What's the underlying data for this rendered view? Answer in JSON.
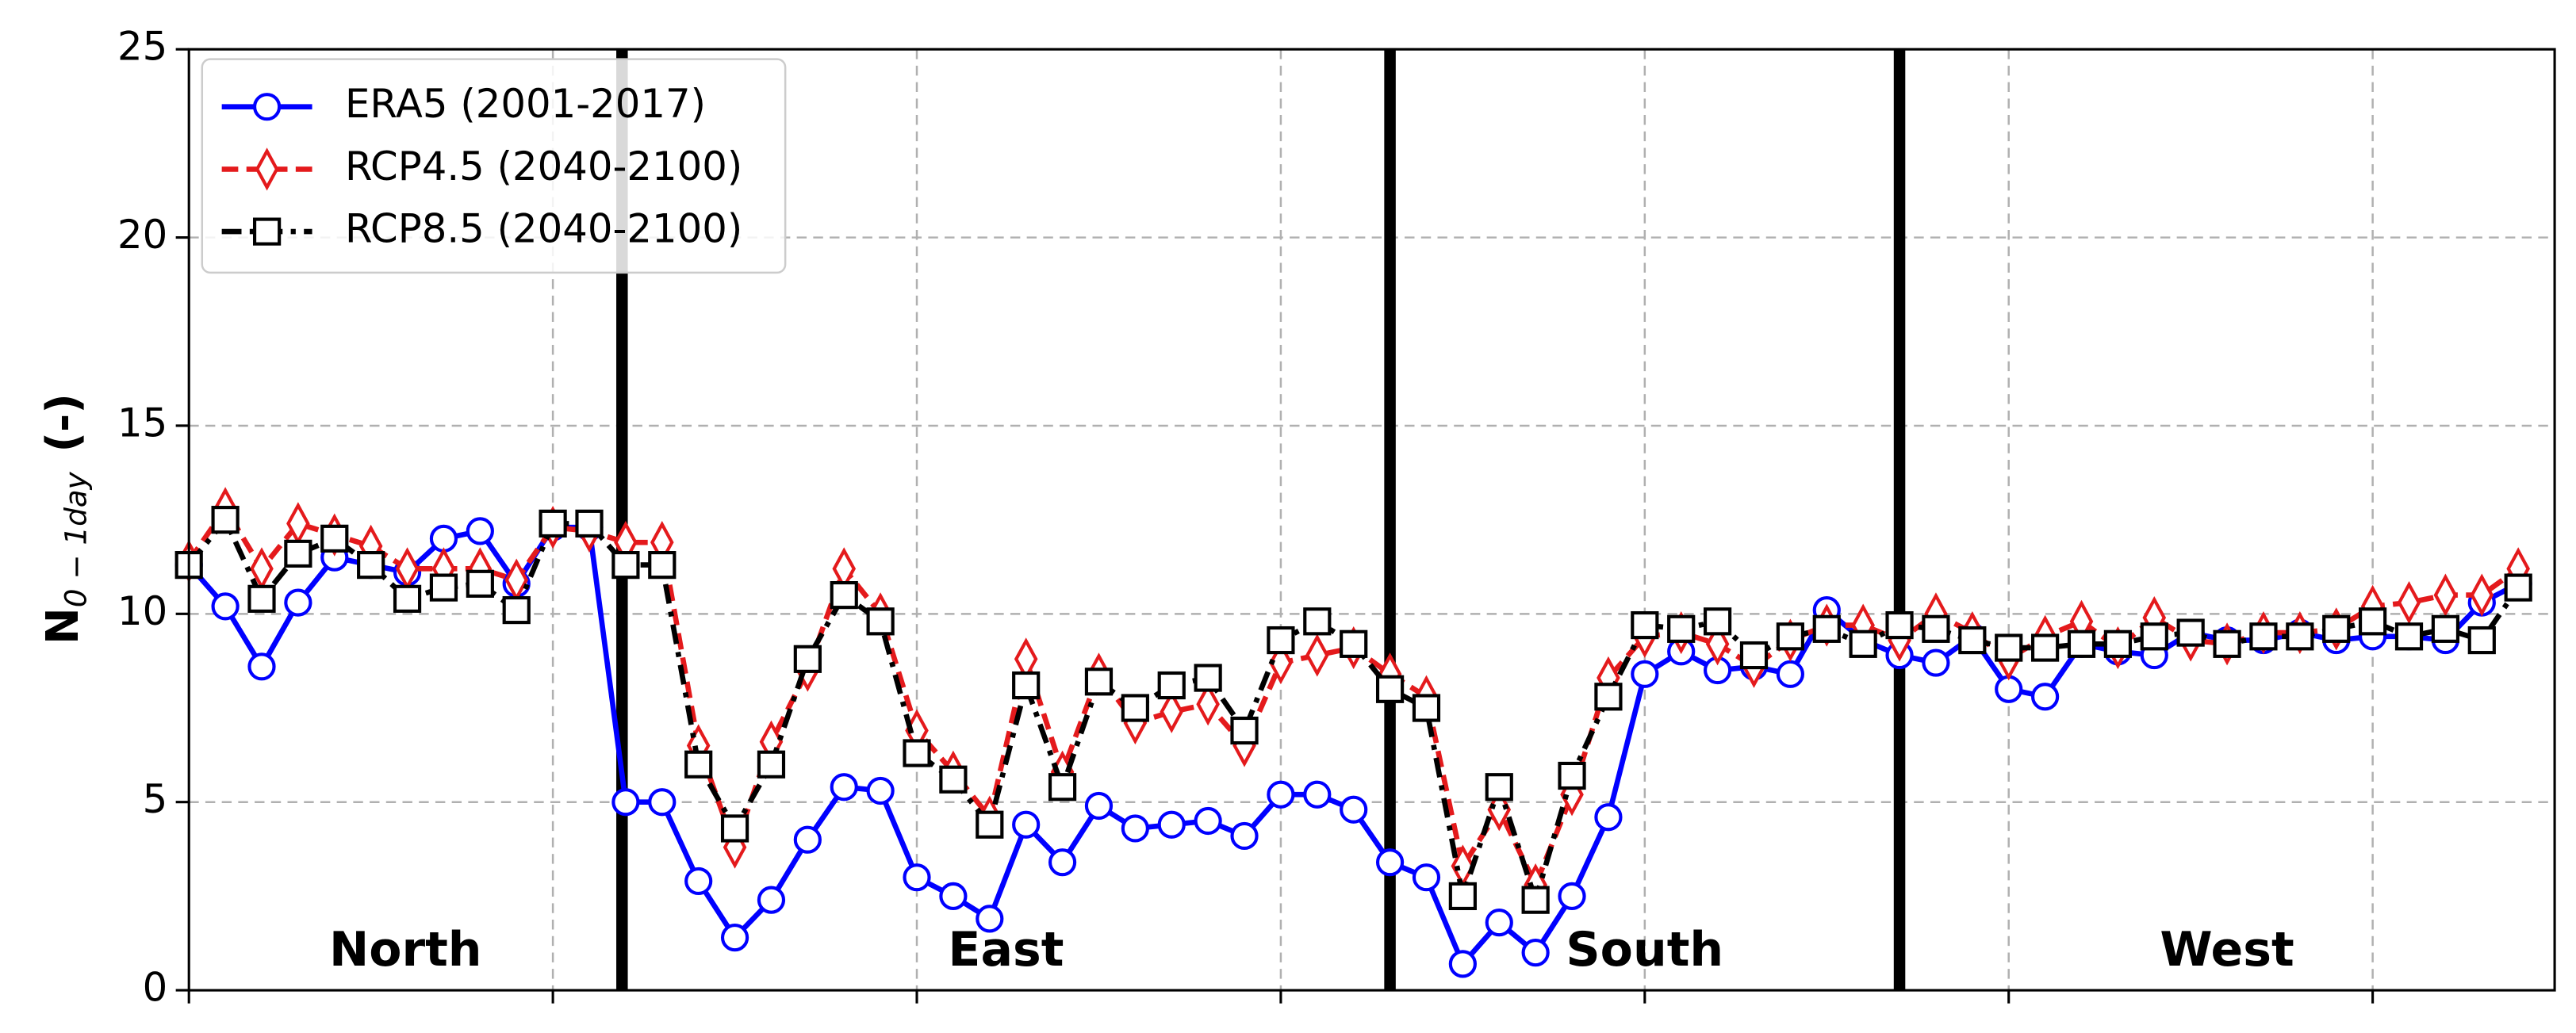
{
  "chart_data": {
    "type": "line",
    "y_label": "N",
    "y_label_subscript": "0 − 1day",
    "y_label_suffix": "(-)",
    "x": [
      0,
      1,
      2,
      3,
      4,
      5,
      6,
      7,
      8,
      9,
      10,
      11,
      12,
      13,
      14,
      15,
      16,
      17,
      18,
      19,
      20,
      21,
      22,
      23,
      24,
      25,
      26,
      27,
      28,
      29,
      30,
      31,
      32,
      33,
      34,
      35,
      36,
      37,
      38,
      39,
      40,
      41,
      42,
      43,
      44,
      45,
      46,
      47,
      48,
      49,
      50,
      51,
      52,
      53,
      54,
      55,
      56,
      57,
      58,
      59,
      60,
      61,
      62,
      63,
      64
    ],
    "xlim": [
      0,
      65
    ],
    "xticks": [
      0,
      10,
      20,
      30,
      40,
      50,
      60
    ],
    "ylim": [
      0,
      25
    ],
    "yticks": [
      0,
      5,
      10,
      15,
      20,
      25
    ],
    "grid": true,
    "legend": "upper left",
    "dividers": [
      11.9,
      33,
      47
    ],
    "regions": [
      "North",
      "East",
      "South",
      "West"
    ],
    "series": [
      {
        "name": "ERA5 (2001-2017)",
        "color": "#0000ff",
        "marker": "circle",
        "linestyle": "solid",
        "values": [
          11.3,
          10.2,
          8.6,
          10.3,
          11.5,
          11.3,
          11.1,
          12.0,
          12.2,
          10.8,
          12.3,
          12.3,
          5.0,
          5.0,
          2.9,
          1.4,
          2.4,
          4.0,
          5.4,
          5.3,
          3.0,
          2.5,
          1.9,
          4.4,
          3.4,
          4.9,
          4.3,
          4.4,
          4.5,
          4.1,
          5.2,
          5.2,
          4.8,
          3.4,
          3.0,
          0.7,
          1.8,
          1.0,
          2.5,
          4.6,
          8.4,
          9.0,
          8.5,
          8.6,
          8.4,
          10.1,
          9.3,
          8.9,
          8.7,
          9.4,
          8.0,
          7.8,
          9.2,
          9.0,
          8.9,
          9.5,
          9.3,
          9.3,
          9.5,
          9.3,
          9.4,
          9.4,
          9.3,
          10.3,
          10.8
        ]
      },
      {
        "name": "RCP4.5 (2040-2100)",
        "color": "#e41a1c",
        "marker": "diamond",
        "linestyle": "dashed",
        "values": [
          11.4,
          12.8,
          11.2,
          12.4,
          12.1,
          11.8,
          11.2,
          11.2,
          11.2,
          10.9,
          12.3,
          12.2,
          11.9,
          11.9,
          6.5,
          3.8,
          6.6,
          8.5,
          11.2,
          10.0,
          6.9,
          5.8,
          4.6,
          8.8,
          5.8,
          8.4,
          7.1,
          7.4,
          7.6,
          6.5,
          8.7,
          8.9,
          9.1,
          8.4,
          7.8,
          3.3,
          4.8,
          2.8,
          5.2,
          8.3,
          9.4,
          9.5,
          9.2,
          8.6,
          9.3,
          9.7,
          9.7,
          9.3,
          10.0,
          9.5,
          8.8,
          9.4,
          9.8,
          9.1,
          9.9,
          9.3,
          9.2,
          9.5,
          9.5,
          9.6,
          10.2,
          10.3,
          10.5,
          10.5,
          11.2
        ]
      },
      {
        "name": "RCP8.5 (2040-2100)",
        "color": "#000000",
        "marker": "square",
        "linestyle": "dashdot",
        "values": [
          11.3,
          12.5,
          10.4,
          11.6,
          12.0,
          11.3,
          10.4,
          10.7,
          10.8,
          10.1,
          12.4,
          12.4,
          11.3,
          11.3,
          6.0,
          4.3,
          6.0,
          8.8,
          10.5,
          9.8,
          6.3,
          5.6,
          4.4,
          8.1,
          5.4,
          8.2,
          7.5,
          8.1,
          8.3,
          6.9,
          9.3,
          9.8,
          9.2,
          8.0,
          7.5,
          2.5,
          5.4,
          2.4,
          5.7,
          7.8,
          9.7,
          9.6,
          9.8,
          8.9,
          9.4,
          9.6,
          9.2,
          9.7,
          9.6,
          9.3,
          9.1,
          9.1,
          9.2,
          9.2,
          9.4,
          9.5,
          9.2,
          9.4,
          9.4,
          9.6,
          9.8,
          9.4,
          9.6,
          9.3,
          10.7
        ]
      }
    ]
  }
}
